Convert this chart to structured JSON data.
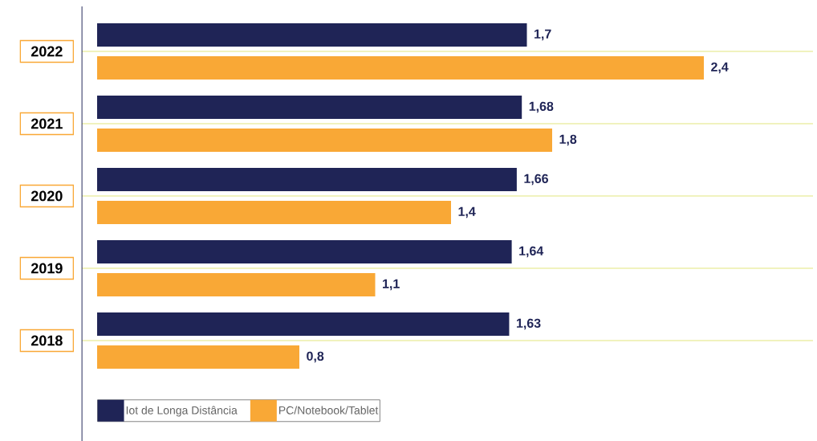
{
  "chart_data": {
    "type": "bar",
    "orientation": "horizontal",
    "categories": [
      "2022",
      "2021",
      "2020",
      "2019",
      "2018"
    ],
    "series": [
      {
        "name": "Iot de Longa Distância",
        "color": "#1f2456",
        "values": [
          1.7,
          1.68,
          1.66,
          1.64,
          1.63
        ],
        "value_labels": [
          "1,7",
          "1,68",
          "1,66",
          "1,64",
          "1,63"
        ]
      },
      {
        "name": "PC/Notebook/Tablet",
        "color": "#f9a836",
        "values": [
          2.4,
          1.8,
          1.4,
          1.1,
          0.8
        ],
        "value_labels": [
          "2,4",
          "1,8",
          "1,4",
          "1,1",
          "0,8"
        ]
      }
    ],
    "grid": "y",
    "legend": "bottom left"
  }
}
